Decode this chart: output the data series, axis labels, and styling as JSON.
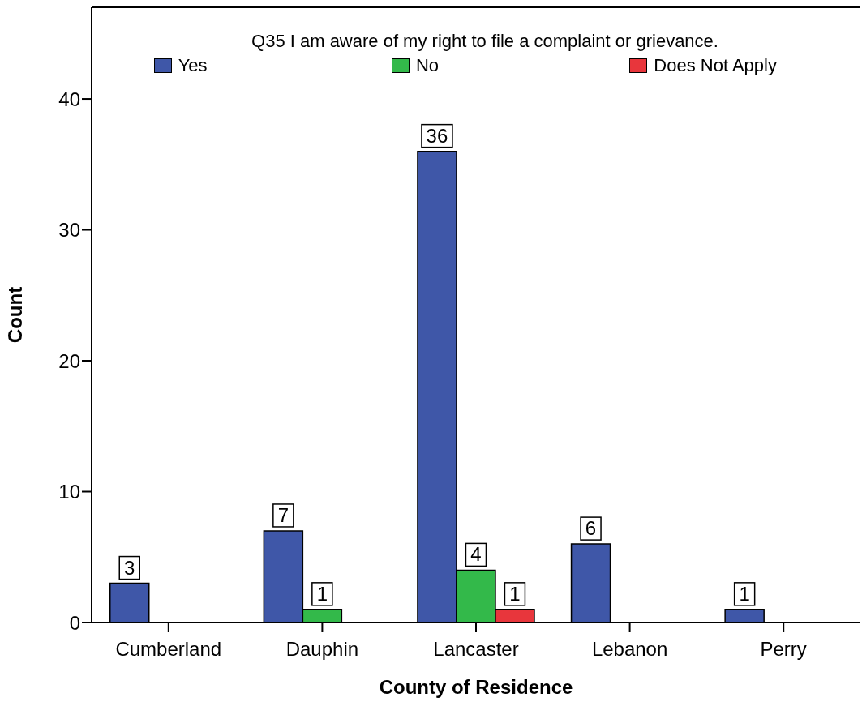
{
  "chart_data": {
    "type": "bar",
    "title": "Q35 I am aware of my right to file a complaint or grievance.",
    "xlabel": "County of Residence",
    "ylabel": "Count",
    "categories": [
      "Cumberland",
      "Dauphin",
      "Lancaster",
      "Lebanon",
      "Perry"
    ],
    "series": [
      {
        "name": "Yes",
        "color": "#3f57a8",
        "values": [
          3,
          7,
          36,
          6,
          1
        ]
      },
      {
        "name": "No",
        "color": "#33b94a",
        "values": [
          null,
          1,
          4,
          null,
          null
        ]
      },
      {
        "name": "Does Not Apply",
        "color": "#e8363c",
        "values": [
          null,
          null,
          1,
          null,
          null
        ]
      }
    ],
    "ylim": [
      0,
      47
    ],
    "yticks": [
      0,
      10,
      20,
      30,
      40
    ],
    "legend": "top",
    "data_labels": true
  }
}
